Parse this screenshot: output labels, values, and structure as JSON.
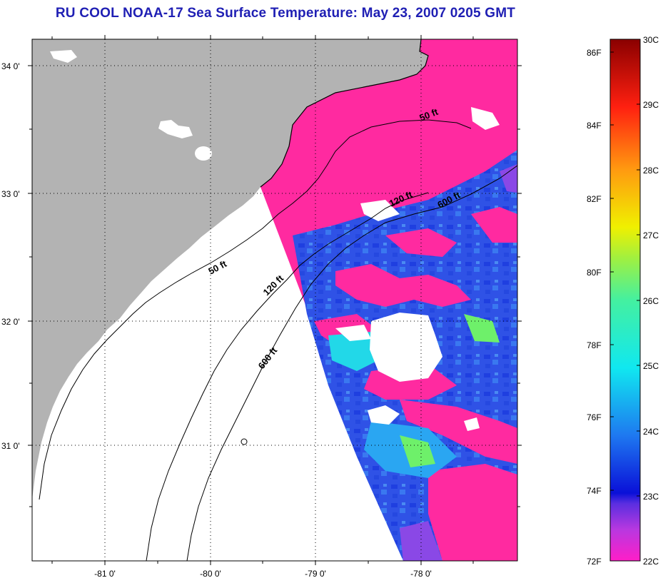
{
  "title": "RU COOL  NOAA-17  Sea Surface Temperature:  May 23, 2007 0205 GMT",
  "map": {
    "lat_labels": [
      "34 0'",
      "33 0'",
      "32 0'",
      "31 0'"
    ],
    "lon_labels": [
      "-81 0'",
      "-80 0'",
      "-79 0'",
      "-78 0'"
    ],
    "depth_labels": [
      "50 ft",
      "120 ft",
      "600 ft",
      "50 ft",
      "120 ft",
      "600 ft"
    ],
    "colors": {
      "land": "#b3b3b3",
      "ocean_no_data": "#ffffff",
      "sst_22c": "#ff2aa0",
      "sst_23c": "#1f3fe0",
      "sst_24c": "#2a7cf0",
      "sst_25c": "#22d8e8",
      "sst_26c": "#6ef06a"
    }
  },
  "colorbar": {
    "fahrenheit_labels": [
      "86F",
      "84F",
      "82F",
      "80F",
      "78F",
      "76F",
      "74F",
      "72F"
    ],
    "celsius_labels": [
      "30C",
      "29C",
      "28C",
      "27C",
      "26C",
      "25C",
      "24C",
      "23C",
      "22C"
    ],
    "range_c": [
      22,
      30
    ],
    "range_f": [
      72,
      86
    ]
  }
}
